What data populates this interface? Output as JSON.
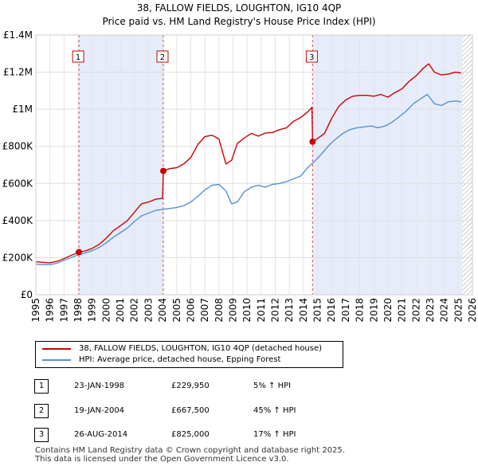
{
  "chart_data": {
    "type": "line",
    "title": "38, FALLOW FIELDS, LOUGHTON, IG10 4QP",
    "subtitle": "Price paid vs. HM Land Registry's House Price Index (HPI)",
    "xlim": [
      1995,
      2026
    ],
    "ylim": [
      0,
      1400000
    ],
    "x_ticks": [
      "1995",
      "1996",
      "1997",
      "1998",
      "1999",
      "2000",
      "2001",
      "2002",
      "2003",
      "2004",
      "2005",
      "2006",
      "2007",
      "2008",
      "2009",
      "2010",
      "2011",
      "2012",
      "2013",
      "2014",
      "2015",
      "2016",
      "2017",
      "2018",
      "2019",
      "2020",
      "2021",
      "2022",
      "2023",
      "2024",
      "2025",
      "2026"
    ],
    "y_ticks": [
      {
        "value": 0,
        "label": "£0"
      },
      {
        "value": 200000,
        "label": "£200K"
      },
      {
        "value": 400000,
        "label": "£400K"
      },
      {
        "value": 600000,
        "label": "£600K"
      },
      {
        "value": 800000,
        "label": "£800K"
      },
      {
        "value": 1000000,
        "label": "£1M"
      },
      {
        "value": 1200000,
        "label": "£1.2M"
      },
      {
        "value": 1400000,
        "label": "£1.4M"
      }
    ],
    "shaded_ranges": [
      [
        1998.06,
        2004.05
      ],
      [
        2014.65,
        2025.3
      ]
    ],
    "hatched_from": 2025.3,
    "sales": [
      {
        "num": "1",
        "x": 1998.06,
        "value": 229950
      },
      {
        "num": "2",
        "x": 2004.05,
        "value": 667500
      },
      {
        "num": "3",
        "x": 2014.65,
        "value": 825000
      }
    ],
    "series": [
      {
        "name": "38, FALLOW FIELDS, LOUGHTON, IG10 4QP (detached house)",
        "color": "#cc0000",
        "x": [
          1995.0,
          1995.5,
          1996.0,
          1996.5,
          1997.0,
          1997.5,
          1998.06,
          1998.5,
          1999.0,
          1999.5,
          2000.0,
          2000.5,
          2001.0,
          2001.5,
          2002.0,
          2002.5,
          2003.0,
          2003.5,
          2004.0,
          2004.05,
          2004.5,
          2005.0,
          2005.5,
          2006.0,
          2006.5,
          2007.0,
          2007.5,
          2008.0,
          2008.5,
          2008.9,
          2009.3,
          2009.8,
          2010.3,
          2010.8,
          2011.3,
          2011.8,
          2012.3,
          2012.8,
          2013.3,
          2013.8,
          2014.3,
          2014.6,
          2014.65,
          2015.0,
          2015.5,
          2016.0,
          2016.5,
          2017.0,
          2017.5,
          2018.0,
          2018.5,
          2019.0,
          2019.5,
          2020.0,
          2020.5,
          2021.0,
          2021.5,
          2022.0,
          2022.5,
          2022.9,
          2023.3,
          2023.8,
          2024.3,
          2024.8,
          2025.2
        ],
        "values": [
          178000,
          175000,
          172000,
          180000,
          195000,
          212000,
          229950,
          236000,
          250000,
          272000,
          305000,
          345000,
          372000,
          400000,
          445000,
          490000,
          500000,
          515000,
          520000,
          667500,
          680000,
          685000,
          705000,
          740000,
          810000,
          852000,
          860000,
          840000,
          705000,
          725000,
          815000,
          845000,
          870000,
          855000,
          872000,
          875000,
          890000,
          900000,
          935000,
          955000,
          985000,
          1010000,
          825000,
          842000,
          870000,
          950000,
          1015000,
          1050000,
          1070000,
          1075000,
          1075000,
          1070000,
          1080000,
          1065000,
          1090000,
          1110000,
          1150000,
          1180000,
          1220000,
          1245000,
          1200000,
          1185000,
          1190000,
          1200000,
          1195000
        ]
      },
      {
        "name": "HPI: Average price, detached house, Epping Forest",
        "color": "#5b8fd1",
        "x": [
          1995.0,
          1995.5,
          1996.0,
          1996.5,
          1997.0,
          1997.5,
          1998.0,
          1998.5,
          1999.0,
          1999.5,
          2000.0,
          2000.5,
          2001.0,
          2001.5,
          2002.0,
          2002.5,
          2003.0,
          2003.5,
          2004.0,
          2004.5,
          2005.0,
          2005.5,
          2006.0,
          2006.5,
          2007.0,
          2007.5,
          2008.0,
          2008.5,
          2008.9,
          2009.3,
          2009.8,
          2010.3,
          2010.8,
          2011.3,
          2011.8,
          2012.3,
          2012.8,
          2013.3,
          2013.8,
          2014.3,
          2014.8,
          2015.3,
          2015.8,
          2016.3,
          2016.8,
          2017.3,
          2017.8,
          2018.3,
          2018.8,
          2019.3,
          2019.8,
          2020.3,
          2020.8,
          2021.3,
          2021.8,
          2022.3,
          2022.8,
          2023.3,
          2023.8,
          2024.3,
          2024.8,
          2025.2
        ],
        "values": [
          165000,
          163000,
          162000,
          170000,
          185000,
          200000,
          215000,
          225000,
          238000,
          255000,
          280000,
          310000,
          335000,
          360000,
          395000,
          425000,
          440000,
          455000,
          460000,
          465000,
          470000,
          480000,
          500000,
          530000,
          565000,
          590000,
          595000,
          560000,
          490000,
          500000,
          555000,
          580000,
          590000,
          580000,
          595000,
          600000,
          610000,
          625000,
          640000,
          685000,
          720000,
          760000,
          805000,
          840000,
          870000,
          890000,
          900000,
          905000,
          910000,
          900000,
          910000,
          930000,
          960000,
          990000,
          1030000,
          1055000,
          1080000,
          1030000,
          1020000,
          1040000,
          1045000,
          1040000
        ]
      }
    ]
  },
  "legend": {
    "property_label": "38, FALLOW FIELDS, LOUGHTON, IG10 4QP (detached house)",
    "hpi_label": "HPI: Average price, detached house, Epping Forest"
  },
  "sales_table": [
    {
      "num": "1",
      "date": "23-JAN-1998",
      "price": "£229,950",
      "hpi": "5% ↑ HPI"
    },
    {
      "num": "2",
      "date": "19-JAN-2004",
      "price": "£667,500",
      "hpi": "45% ↑ HPI"
    },
    {
      "num": "3",
      "date": "26-AUG-2014",
      "price": "£825,000",
      "hpi": "17% ↑ HPI"
    }
  ],
  "footer": {
    "line1": "Contains HM Land Registry data © Crown copyright and database right 2025.",
    "line2": "This data is licensed under the Open Government Licence v3.0."
  }
}
